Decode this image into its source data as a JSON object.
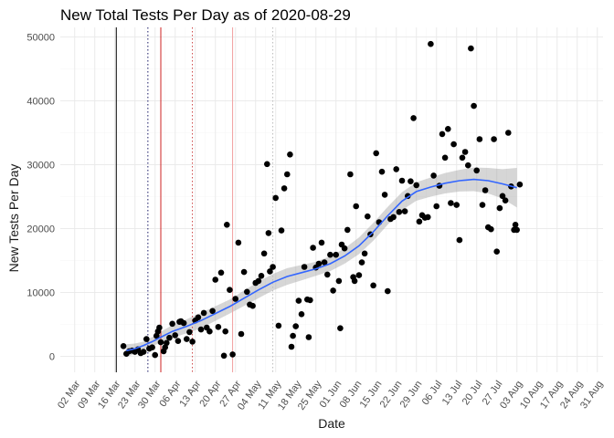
{
  "chart_data": {
    "type": "scatter",
    "title": "New Total Tests Per Day as of 2020-08-29",
    "xlabel": "Date",
    "ylabel": "New Tests Per Day",
    "ylim": [
      -2500,
      51500
    ],
    "xlim_days": [
      -4,
      185
    ],
    "x_origin": "2020-03-01",
    "y_ticks": [
      0,
      10000,
      20000,
      30000,
      40000,
      50000
    ],
    "y_tick_labels": [
      "0",
      "10000",
      "20000",
      "30000",
      "40000",
      "50000"
    ],
    "x_ticks_days": [
      1,
      8,
      15,
      22,
      29,
      36,
      43,
      50,
      57,
      64,
      71,
      78,
      85,
      92,
      99,
      106,
      113,
      120,
      127,
      134,
      141,
      148,
      155,
      162,
      169,
      176,
      183
    ],
    "x_tick_labels": [
      "02 Mar",
      "09 Mar",
      "16 Mar",
      "23 Mar",
      "30 Mar",
      "06 Apr",
      "13 Apr",
      "20 Apr",
      "27 Apr",
      "04 May",
      "11 May",
      "18 May",
      "25 May",
      "01 Jun",
      "08 Jun",
      "15 Jun",
      "22 Jun",
      "29 Jun",
      "06 Jul",
      "13 Jul",
      "20 Jul",
      "27 Jul",
      "03 Aug",
      "10 Aug",
      "17 Aug",
      "24 Aug",
      "31 Aug"
    ],
    "reference_lines": [
      {
        "day": 15.5,
        "color": "#000000",
        "style": "solid"
      },
      {
        "day": 26.5,
        "color": "#1a1a66",
        "style": "dotted"
      },
      {
        "day": 31,
        "color": "#cc2222",
        "style": "solid"
      },
      {
        "day": 42,
        "color": "#cc4444",
        "style": "dotted"
      },
      {
        "day": 56,
        "color": "#f2a0a0",
        "style": "solid"
      },
      {
        "day": 70,
        "color": "#bbbbbb",
        "style": "dotted"
      }
    ],
    "series": [
      {
        "name": "New tests",
        "points": [
          [
            18,
            1600
          ],
          [
            19,
            400
          ],
          [
            20,
            800
          ],
          [
            21,
            900
          ],
          [
            22,
            700
          ],
          [
            23,
            1100
          ],
          [
            24,
            500
          ],
          [
            25,
            700
          ],
          [
            26,
            2700
          ],
          [
            27,
            1200
          ],
          [
            28,
            1400
          ],
          [
            29,
            200
          ],
          [
            29.5,
            3200
          ],
          [
            30,
            3900
          ],
          [
            30.5,
            4500
          ],
          [
            31,
            2200
          ],
          [
            32,
            800
          ],
          [
            32.5,
            1400
          ],
          [
            33,
            2100
          ],
          [
            34,
            2900
          ],
          [
            35,
            5100
          ],
          [
            36,
            3300
          ],
          [
            37,
            2400
          ],
          [
            37.5,
            5400
          ],
          [
            38,
            5500
          ],
          [
            39,
            5200
          ],
          [
            40,
            2700
          ],
          [
            41,
            3800
          ],
          [
            42,
            2300
          ],
          [
            43,
            5600
          ],
          [
            44,
            6100
          ],
          [
            45,
            4200
          ],
          [
            46,
            6800
          ],
          [
            47,
            4500
          ],
          [
            48,
            3900
          ],
          [
            49,
            7100
          ],
          [
            50,
            12000
          ],
          [
            51,
            4600
          ],
          [
            52,
            13100
          ],
          [
            53,
            100
          ],
          [
            53.5,
            3900
          ],
          [
            54,
            20600
          ],
          [
            55,
            10400
          ],
          [
            56,
            300
          ],
          [
            57,
            9000
          ],
          [
            58,
            17800
          ],
          [
            59,
            3500
          ],
          [
            60,
            13200
          ],
          [
            61,
            10100
          ],
          [
            62,
            8100
          ],
          [
            63,
            7900
          ],
          [
            64,
            11500
          ],
          [
            65,
            11800
          ],
          [
            66,
            12600
          ],
          [
            67,
            16100
          ],
          [
            68,
            30100
          ],
          [
            68.5,
            19300
          ],
          [
            69,
            13300
          ],
          [
            70,
            14000
          ],
          [
            71,
            24800
          ],
          [
            72,
            4800
          ],
          [
            73,
            19700
          ],
          [
            74,
            26300
          ],
          [
            75,
            28500
          ],
          [
            76,
            31600
          ],
          [
            76.5,
            1500
          ],
          [
            77,
            3200
          ],
          [
            78,
            4700
          ],
          [
            79,
            8700
          ],
          [
            80,
            6600
          ],
          [
            81,
            14000
          ],
          [
            82,
            8900
          ],
          [
            82.5,
            3000
          ],
          [
            83,
            8800
          ],
          [
            84,
            17000
          ],
          [
            85,
            13900
          ],
          [
            86,
            14500
          ],
          [
            87,
            17800
          ],
          [
            88,
            14700
          ],
          [
            89,
            12800
          ],
          [
            90,
            15900
          ],
          [
            91,
            10300
          ],
          [
            92,
            15900
          ],
          [
            93,
            11800
          ],
          [
            93.5,
            4400
          ],
          [
            94,
            17500
          ],
          [
            95,
            16900
          ],
          [
            96,
            19800
          ],
          [
            97,
            28500
          ],
          [
            98,
            12400
          ],
          [
            98.5,
            11800
          ],
          [
            99,
            23500
          ],
          [
            100,
            12700
          ],
          [
            101,
            14700
          ],
          [
            102,
            16100
          ],
          [
            103,
            21900
          ],
          [
            104,
            19100
          ],
          [
            105,
            11100
          ],
          [
            106,
            31800
          ],
          [
            107,
            21000
          ],
          [
            108,
            28900
          ],
          [
            109,
            25300
          ],
          [
            110,
            10200
          ],
          [
            111,
            21500
          ],
          [
            112,
            21800
          ],
          [
            113,
            29300
          ],
          [
            114,
            22600
          ],
          [
            115,
            27500
          ],
          [
            116,
            22700
          ],
          [
            117,
            25100
          ],
          [
            118,
            27400
          ],
          [
            119,
            37300
          ],
          [
            120,
            26800
          ],
          [
            121,
            21100
          ],
          [
            122,
            22100
          ],
          [
            123,
            21700
          ],
          [
            124,
            21800
          ],
          [
            125,
            48900
          ],
          [
            126,
            28300
          ],
          [
            127,
            23500
          ],
          [
            128,
            26700
          ],
          [
            129,
            34800
          ],
          [
            130,
            31100
          ],
          [
            131,
            35600
          ],
          [
            132,
            24000
          ],
          [
            133,
            33200
          ],
          [
            134,
            23700
          ],
          [
            135,
            18200
          ],
          [
            136,
            31100
          ],
          [
            137,
            32000
          ],
          [
            138,
            29900
          ],
          [
            139,
            48200
          ],
          [
            140,
            39200
          ],
          [
            141,
            29100
          ],
          [
            142,
            34000
          ],
          [
            143,
            23700
          ],
          [
            144,
            26000
          ],
          [
            145,
            20200
          ],
          [
            146,
            19900
          ],
          [
            147,
            34000
          ],
          [
            148,
            16400
          ],
          [
            149,
            23200
          ],
          [
            150,
            25100
          ],
          [
            151,
            24400
          ],
          [
            152,
            35000
          ],
          [
            153,
            26600
          ],
          [
            154,
            19800
          ],
          [
            154.5,
            20600
          ],
          [
            155,
            19800
          ],
          [
            156,
            26900
          ]
        ]
      }
    ],
    "smooth_line": [
      [
        19,
        900
      ],
      [
        22,
        1200
      ],
      [
        25,
        1700
      ],
      [
        28,
        2300
      ],
      [
        31,
        3000
      ],
      [
        35,
        3900
      ],
      [
        40,
        4700
      ],
      [
        45,
        5600
      ],
      [
        50,
        6700
      ],
      [
        55,
        7800
      ],
      [
        60,
        9100
      ],
      [
        65,
        10400
      ],
      [
        70,
        11600
      ],
      [
        75,
        12500
      ],
      [
        80,
        13100
      ],
      [
        85,
        13700
      ],
      [
        90,
        14500
      ],
      [
        95,
        15700
      ],
      [
        100,
        17300
      ],
      [
        105,
        19500
      ],
      [
        110,
        22000
      ],
      [
        115,
        24300
      ],
      [
        120,
        25800
      ],
      [
        125,
        26500
      ],
      [
        130,
        27100
      ],
      [
        135,
        27500
      ],
      [
        140,
        27700
      ],
      [
        145,
        27500
      ],
      [
        150,
        27000
      ],
      [
        155,
        26400
      ]
    ],
    "smooth_band_halfwidth": [
      [
        19,
        1000
      ],
      [
        25,
        600
      ],
      [
        35,
        1000
      ],
      [
        45,
        1200
      ],
      [
        55,
        1100
      ],
      [
        65,
        1300
      ],
      [
        75,
        1300
      ],
      [
        85,
        1100
      ],
      [
        95,
        1200
      ],
      [
        105,
        1400
      ],
      [
        115,
        1400
      ],
      [
        125,
        1500
      ],
      [
        135,
        1700
      ],
      [
        145,
        2000
      ],
      [
        150,
        2300
      ],
      [
        155,
        3100
      ]
    ]
  }
}
